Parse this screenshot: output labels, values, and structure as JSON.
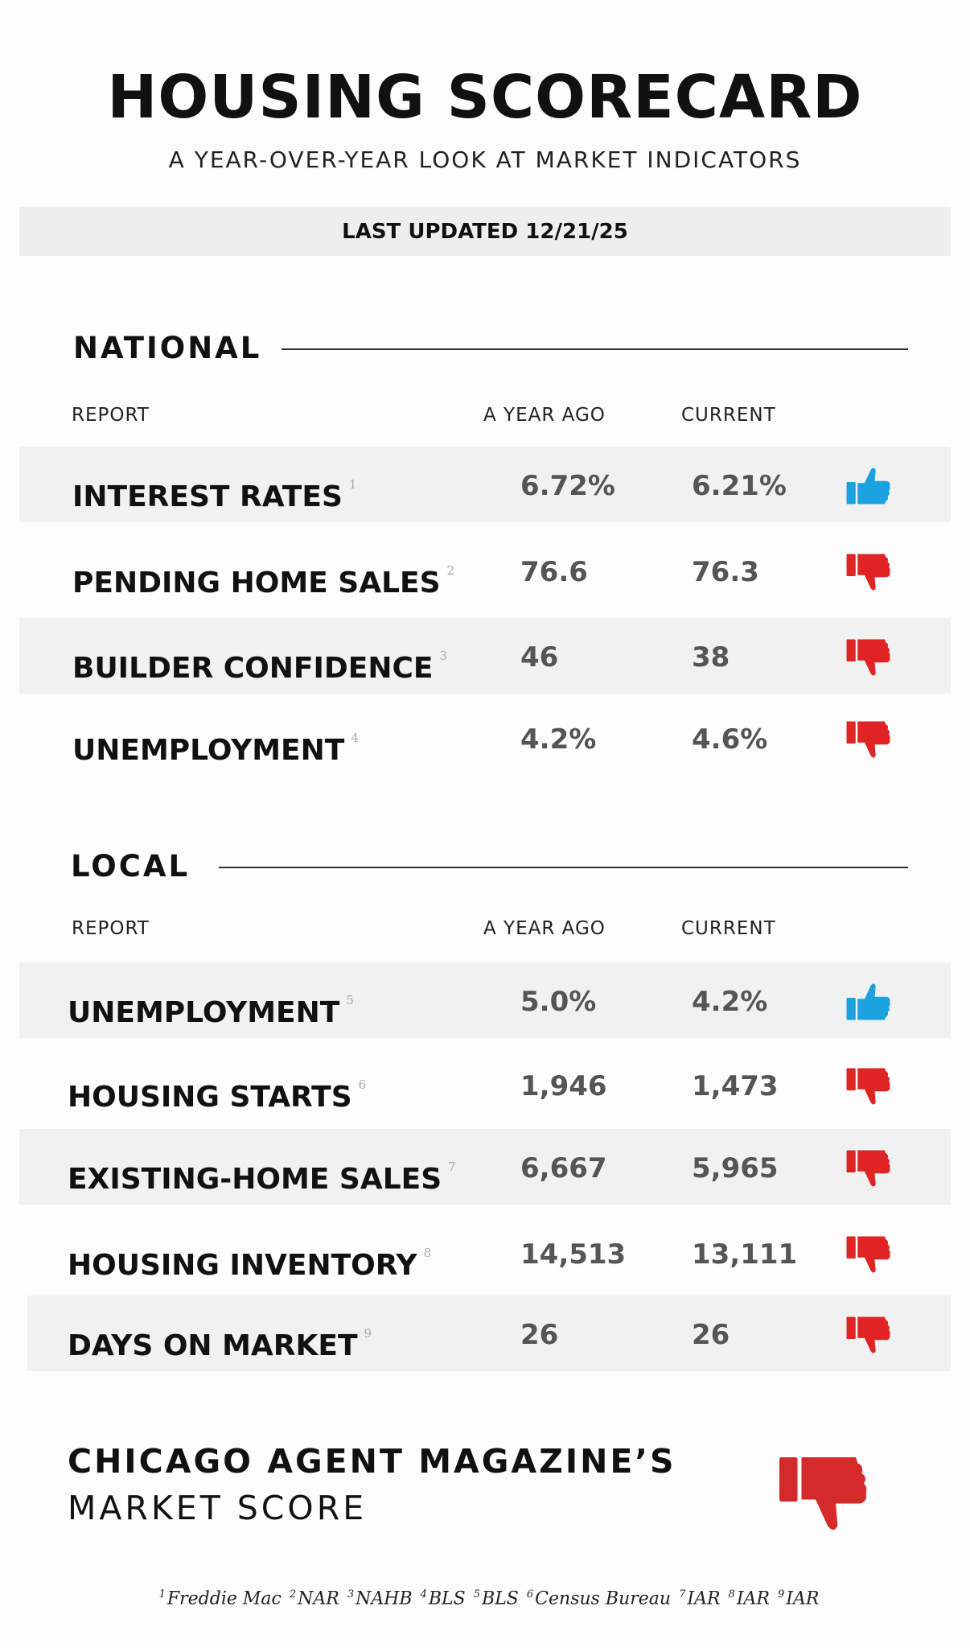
{
  "header": {
    "title": "HOUSING SCORECARD",
    "subtitle": "A YEAR-OVER-YEAR LOOK AT MARKET INDICATORS",
    "updated": "LAST UPDATED 12/21/25"
  },
  "national": {
    "title": "NATIONAL",
    "columns": [
      "REPORT",
      "A YEAR AGO",
      "CURRENT"
    ],
    "rows": [
      {
        "label": "INTEREST RATES",
        "note": "1",
        "year_ago": "6.72%",
        "current": "6.21%"
      },
      {
        "label": "PENDING HOME SALES",
        "note": "2",
        "year_ago": "76.6",
        "current": "76.3"
      },
      {
        "label": "BUILDER CONFIDENCE",
        "note": "3",
        "year_ago": "46",
        "current": "38"
      },
      {
        "label": "UNEMPLOYMENT",
        "note": "4",
        "year_ago": "4.2%",
        "current": "4.6%"
      }
    ]
  },
  "local": {
    "title": "LOCAL",
    "columns": [
      "REPORT",
      "A YEAR AGO",
      "CURRENT"
    ],
    "rows": [
      {
        "label": "UNEMPLOYMENT",
        "note": "5",
        "year_ago": "5.0%",
        "current": "4.2%"
      },
      {
        "label": "HOUSING STARTS",
        "note": "6",
        "year_ago": "1,946",
        "current": "1,473"
      },
      {
        "label": "EXISTING-HOME SALES",
        "note": "7",
        "year_ago": "6,667",
        "current": "5,965"
      },
      {
        "label": "HOUSING INVENTORY",
        "note": "8",
        "year_ago": "14,513",
        "current": "13,111"
      },
      {
        "label": "DAYS ON MARKET",
        "note": "9",
        "year_ago": "26",
        "current": "26"
      }
    ]
  },
  "score": {
    "line1": "CHICAGO AGENT MAGAZINE’S",
    "line2": "MARKET SCORE"
  },
  "footnotes": [
    {
      "mark": "1",
      "source": "Freddie Mac"
    },
    {
      "mark": "2",
      "source": "NAR"
    },
    {
      "mark": "3",
      "source": "NAHB"
    },
    {
      "mark": "4",
      "source": "BLS"
    },
    {
      "mark": "5",
      "source": "BLS"
    },
    {
      "mark": "6",
      "source": "Census Bureau"
    },
    {
      "mark": "7",
      "source": "IAR"
    },
    {
      "mark": "8",
      "source": "IAR"
    },
    {
      "mark": "9",
      "source": "IAR"
    }
  ]
}
